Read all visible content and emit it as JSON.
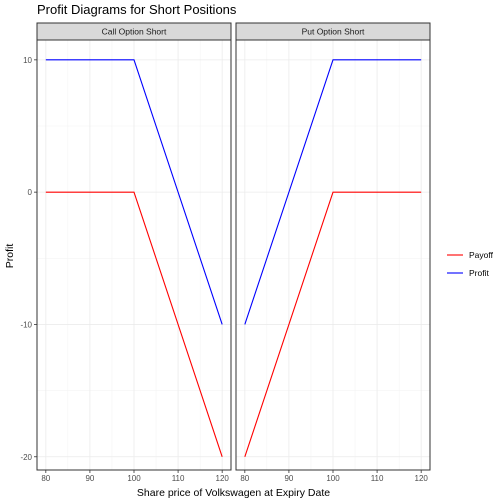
{
  "chart_data": {
    "type": "line",
    "title": "Profit Diagrams for Short Positions",
    "xlabel": "Share price of Volkswagen at Expiry Date",
    "ylabel": "Profit",
    "xlim": [
      78,
      122
    ],
    "ylim": [
      -21,
      11.5
    ],
    "x_ticks": [
      80,
      90,
      100,
      110,
      120
    ],
    "y_ticks": [
      10,
      0,
      -10,
      -20
    ],
    "grid": true,
    "legend_position": "right",
    "legend": [
      {
        "name": "Payoff",
        "color": "#ff0000"
      },
      {
        "name": "Profit",
        "color": "#0000ff"
      }
    ],
    "panels": [
      {
        "label": "Call Option Short",
        "series": [
          {
            "name": "Payoff",
            "color": "#ff0000",
            "x": [
              80,
              100,
              120
            ],
            "y": [
              0,
              0,
              -20
            ]
          },
          {
            "name": "Profit",
            "color": "#0000ff",
            "x": [
              80,
              100,
              120
            ],
            "y": [
              10,
              10,
              -10
            ]
          }
        ]
      },
      {
        "label": "Put Option Short",
        "series": [
          {
            "name": "Payoff",
            "color": "#ff0000",
            "x": [
              80,
              100,
              120
            ],
            "y": [
              -20,
              0,
              0
            ]
          },
          {
            "name": "Profit",
            "color": "#0000ff",
            "x": [
              80,
              100,
              120
            ],
            "y": [
              -10,
              10,
              10
            ]
          }
        ]
      }
    ]
  }
}
